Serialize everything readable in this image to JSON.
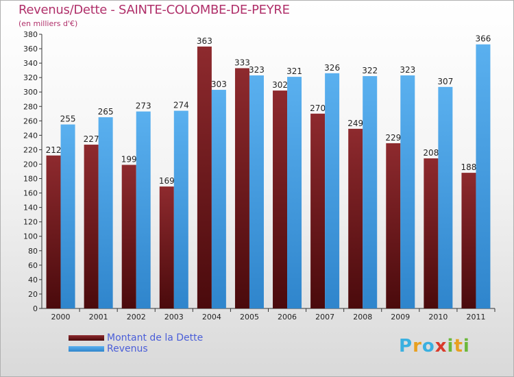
{
  "title": "Revenus/Dette - SAINTE-COLOMBE-DE-PEYRE",
  "subtitle": "(en milliers d'€)",
  "colors": {
    "debt": "#7a1e22",
    "revenue": "#4ba3e6",
    "title": "#b0306a",
    "legend_text": "#4a5ed8"
  },
  "logo": {
    "text": "Proxiti",
    "letters": [
      {
        "ch": "P",
        "color": "#3ab0e0"
      },
      {
        "ch": "r",
        "color": "#e8a020"
      },
      {
        "ch": "o",
        "color": "#3ab0e0"
      },
      {
        "ch": "x",
        "color": "#d93a2a"
      },
      {
        "ch": "i",
        "color": "#6bb83a"
      },
      {
        "ch": "t",
        "color": "#e8a020"
      },
      {
        "ch": "i",
        "color": "#6bb83a"
      }
    ]
  },
  "chart_data": {
    "type": "bar",
    "categories": [
      "2000",
      "2001",
      "2002",
      "2003",
      "2004",
      "2005",
      "2006",
      "2007",
      "2008",
      "2009",
      "2010",
      "2011"
    ],
    "series": [
      {
        "name": "Montant de la Dette",
        "values": [
          212,
          227,
          199,
          169,
          363,
          333,
          302,
          270,
          249,
          229,
          208,
          188
        ]
      },
      {
        "name": "Revenus",
        "values": [
          255,
          265,
          273,
          274,
          303,
          323,
          321,
          326,
          322,
          323,
          307,
          366
        ]
      }
    ],
    "ylim": [
      0,
      380
    ],
    "ytick_step": 20,
    "grid": false,
    "legend": "bottom-left"
  }
}
